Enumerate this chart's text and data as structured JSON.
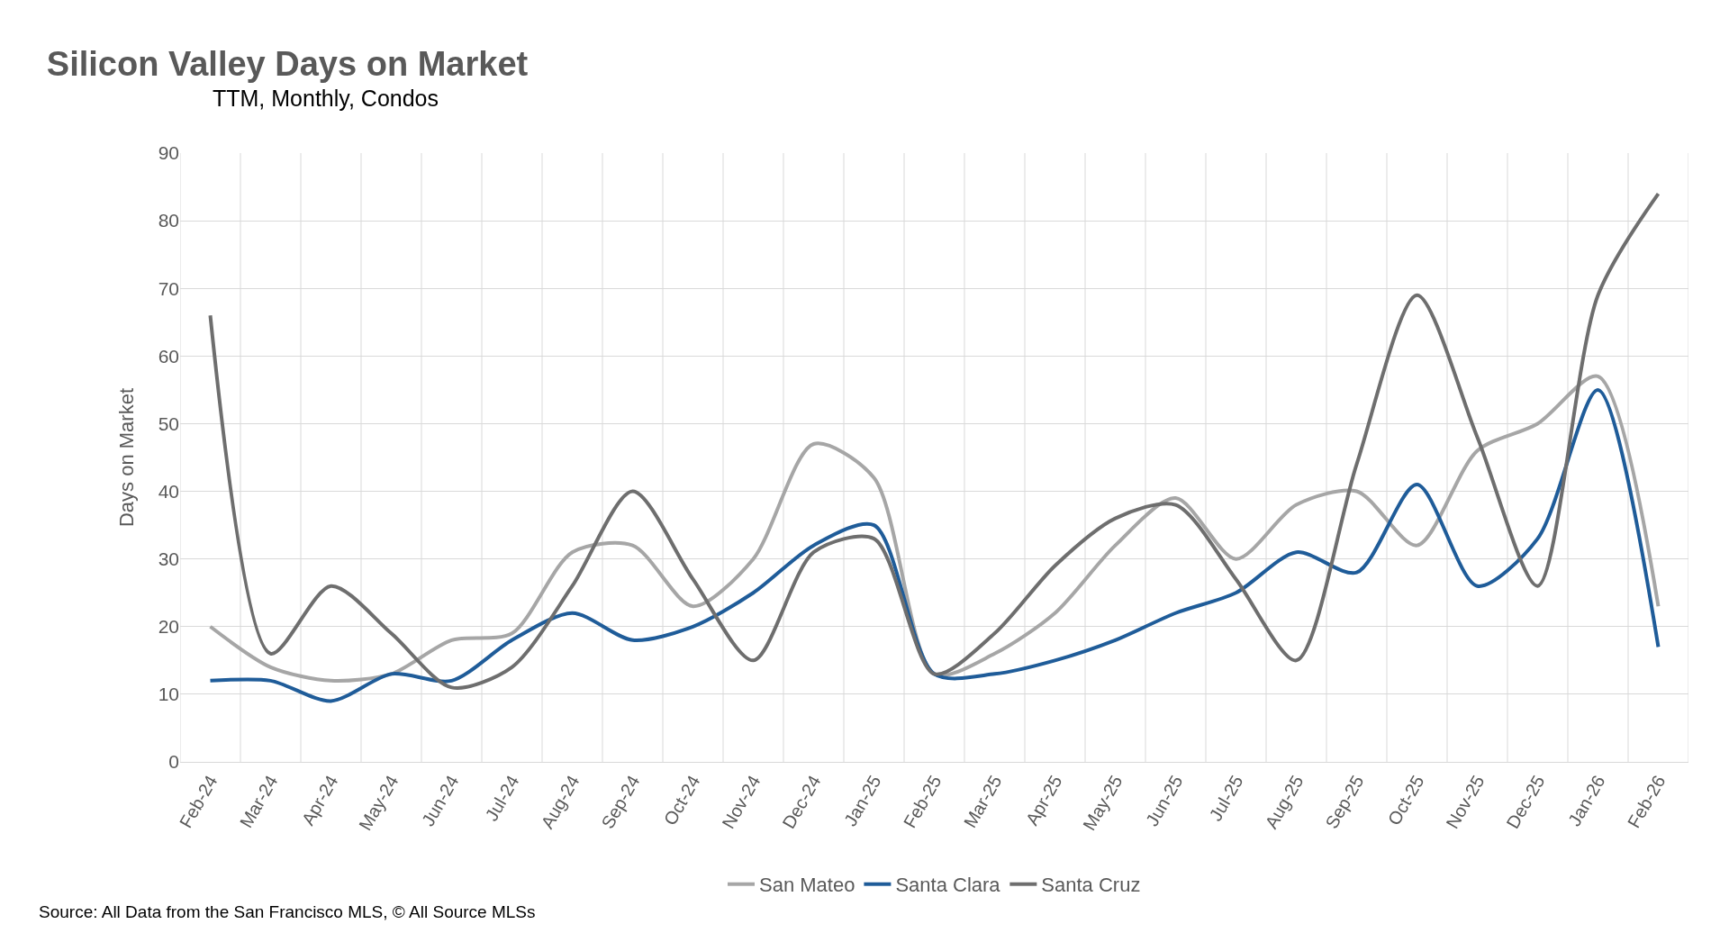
{
  "chart_data": {
    "type": "line",
    "title": "Silicon Valley Days on Market",
    "subtitle": "TTM, Monthly, Condos",
    "ylabel": "Days on Market",
    "categories": [
      "Feb-24",
      "Mar-24",
      "Apr-24",
      "May-24",
      "Jun-24",
      "Jul-24",
      "Aug-24",
      "Sep-24",
      "Oct-24",
      "Nov-24",
      "Dec-24",
      "Jan-25",
      "Feb-25",
      "Mar-25",
      "Apr-25",
      "May-25",
      "Jun-25",
      "Jul-25",
      "Aug-25",
      "Sep-25",
      "Oct-25",
      "Nov-25",
      "Dec-25",
      "Jan-26",
      "Feb-26"
    ],
    "series": [
      {
        "name": "San Mateo",
        "color": "#a6a6a6",
        "values": [
          20,
          14,
          12,
          13,
          18,
          19,
          31,
          32,
          23,
          30,
          47,
          42,
          13,
          16,
          22,
          32,
          39,
          30,
          38,
          40,
          32,
          46,
          50,
          57,
          23
        ]
      },
      {
        "name": "Santa Clara",
        "color": "#1f5c99",
        "values": [
          12,
          12,
          9,
          13,
          12,
          18,
          22,
          18,
          20,
          25,
          32,
          35,
          13,
          13,
          15,
          18,
          22,
          25,
          31,
          28,
          41,
          26,
          33,
          55,
          17
        ]
      },
      {
        "name": "Santa Cruz",
        "color": "#6e6e6e",
        "values": [
          66,
          16,
          26,
          19,
          11,
          14,
          26,
          40,
          27,
          15,
          31,
          33,
          13,
          19,
          29,
          36,
          38,
          27,
          15,
          44,
          69,
          48,
          26,
          69,
          84
        ]
      }
    ],
    "ylim": [
      0,
      90
    ],
    "yticks": [
      0,
      10,
      20,
      30,
      40,
      50,
      60,
      70,
      80,
      90
    ],
    "grid": true,
    "legend": "bottom",
    "marker": "none",
    "line_style": "solid",
    "annotations": [
      "Source: All Data from the San Francisco MLS, © All Source MLSs"
    ]
  }
}
